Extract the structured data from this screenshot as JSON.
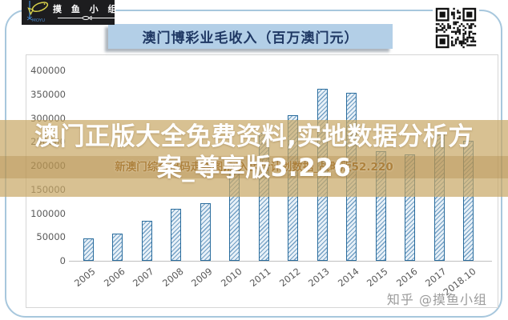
{
  "header": {
    "logo": {
      "brand_text": "摸 鱼 小 组",
      "brand_sub": "MOYU"
    },
    "title": "澳门博彩业毛收入（百万澳门元）"
  },
  "watermark": {
    "line1": "澳门正版大全免费资料,实地数据分析方",
    "line2": "案_尊享版3.226",
    "faint_line": "新澳门综合出码走势图,深入执行计划数据_战略版52.220"
  },
  "footer": {
    "credit": "知乎 @摸鱼小组"
  },
  "colors": {
    "title_bg": "#b3cfe7",
    "title_text": "#1f3864",
    "frame_border": "#a7c7dd",
    "bar_border": "#2a6d9e",
    "bar_hatch": "#729fc4",
    "bar_fill": "#e8f1f8",
    "band": "#c7a664",
    "axis_text": "#595959"
  },
  "chart_data": {
    "type": "bar",
    "title": "澳门博彩业毛收入（百万澳门元）",
    "categories": [
      "2005",
      "2006",
      "2007",
      "2008",
      "2009",
      "2010",
      "2011",
      "2012",
      "2013",
      "2014",
      "2015",
      "2016",
      "2017",
      "2018.10"
    ],
    "values": [
      47100,
      57500,
      83800,
      109800,
      120400,
      189600,
      268900,
      305200,
      361900,
      352700,
      230800,
      223200,
      265700,
      251500
    ],
    "xlabel": "",
    "ylabel": "",
    "ylim": [
      0,
      400000
    ],
    "ytick_step": 50000,
    "yticks": [
      "0",
      "50000",
      "100000",
      "150000",
      "200000",
      "250000",
      "300000",
      "350000",
      "400000"
    ],
    "grid": false,
    "legend": "none",
    "x_tick_rotation": -38
  }
}
